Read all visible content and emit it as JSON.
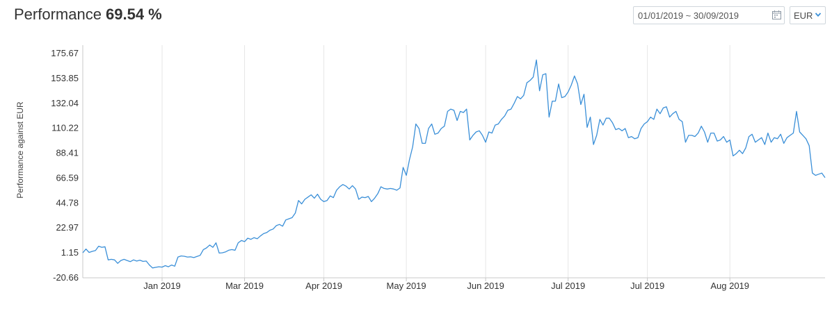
{
  "header": {
    "title": "Performance",
    "value": "69.54 %"
  },
  "date_range": {
    "value": "01/01/2019 ~ 30/09/2019",
    "icon": "calendar-icon"
  },
  "currency": {
    "selected": "EUR",
    "icon": "chevron-down-icon"
  },
  "colors": {
    "line": "#3a8fd8",
    "grid": "#e6e6e6",
    "axis": "#c8c8c8",
    "accent": "#3a8fd8"
  },
  "chart_data": {
    "type": "line",
    "title": "",
    "ylabel": "Performance against EUR",
    "xlabel": "",
    "ylim": [
      -20.66,
      175.67
    ],
    "yticks": [
      "-20.66",
      "1.15",
      "22.97",
      "44.78",
      "66.59",
      "88.41",
      "110.22",
      "132.04",
      "153.85",
      "175.67"
    ],
    "xlim": [
      0,
      228
    ],
    "xticks": [
      {
        "label": "Jan 2019",
        "x": 25
      },
      {
        "label": "Mar 2019",
        "x": 51
      },
      {
        "label": "Apr 2019",
        "x": 76
      },
      {
        "label": "May 2019",
        "x": 102
      },
      {
        "label": "Jun 2019",
        "x": 127
      },
      {
        "label": "Jul 2019",
        "x": 153
      },
      {
        "label": "Jul 2019",
        "x": 178
      },
      {
        "label": "Aug 2019",
        "x": 204
      }
    ],
    "grid_x": true,
    "grid_y": false,
    "series": [
      {
        "values": [
          [
            0,
            1.2
          ],
          [
            1,
            4.5
          ],
          [
            2,
            1.5
          ],
          [
            3,
            2.5
          ],
          [
            4,
            3.2
          ],
          [
            5,
            7.0
          ],
          [
            6,
            6.0
          ],
          [
            7,
            6.5
          ],
          [
            8,
            -5.0
          ],
          [
            9,
            -4.5
          ],
          [
            10,
            -5.0
          ],
          [
            11,
            -8.0
          ],
          [
            12,
            -5.5
          ],
          [
            13,
            -4.5
          ],
          [
            14,
            -5.5
          ],
          [
            15,
            -6.5
          ],
          [
            16,
            -5.0
          ],
          [
            17,
            -6.0
          ],
          [
            18,
            -5.2
          ],
          [
            19,
            -6.3
          ],
          [
            20,
            -6.0
          ],
          [
            21,
            -9.5
          ],
          [
            22,
            -12.0
          ],
          [
            23,
            -11.5
          ],
          [
            24,
            -11.0
          ],
          [
            25,
            -11.3
          ],
          [
            26,
            -10.0
          ],
          [
            27,
            -11.0
          ],
          [
            28,
            -9.5
          ],
          [
            29,
            -10.5
          ],
          [
            30,
            -2.5
          ],
          [
            31,
            -1.5
          ],
          [
            32,
            -1.8
          ],
          [
            33,
            -2.5
          ],
          [
            34,
            -2.3
          ],
          [
            35,
            -3.0
          ],
          [
            36,
            -2.0
          ],
          [
            37,
            -1.0
          ],
          [
            38,
            4.0
          ],
          [
            39,
            5.5
          ],
          [
            40,
            8.0
          ],
          [
            41,
            6.0
          ],
          [
            42,
            10.0
          ],
          [
            43,
            1.0
          ],
          [
            44,
            1.2
          ],
          [
            45,
            2.0
          ],
          [
            46,
            3.5
          ],
          [
            47,
            4.0
          ],
          [
            48,
            3.5
          ],
          [
            49,
            10.0
          ],
          [
            50,
            12.0
          ],
          [
            51,
            11.0
          ],
          [
            52,
            14.0
          ],
          [
            53,
            13.0
          ],
          [
            54,
            14.5
          ],
          [
            55,
            13.5
          ],
          [
            56,
            16.0
          ],
          [
            57,
            18.0
          ],
          [
            58,
            19.0
          ],
          [
            59,
            21.0
          ],
          [
            60,
            22.0
          ],
          [
            61,
            25.0
          ],
          [
            62,
            26.0
          ],
          [
            63,
            24.5
          ],
          [
            64,
            30.0
          ],
          [
            65,
            31.0
          ],
          [
            66,
            32.0
          ],
          [
            67,
            36.0
          ],
          [
            68,
            47.0
          ],
          [
            69,
            44.0
          ],
          [
            70,
            48.0
          ],
          [
            71,
            50.0
          ],
          [
            72,
            52.0
          ],
          [
            73,
            49.0
          ],
          [
            74,
            52.5
          ],
          [
            75,
            48.0
          ],
          [
            76,
            46.0
          ],
          [
            77,
            47.0
          ],
          [
            78,
            51.0
          ],
          [
            79,
            49.5
          ],
          [
            80,
            56.0
          ],
          [
            81,
            59.0
          ],
          [
            82,
            61.0
          ],
          [
            83,
            59.5
          ],
          [
            84,
            57.0
          ],
          [
            85,
            60.0
          ],
          [
            86,
            57.0
          ],
          [
            87,
            48.0
          ],
          [
            88,
            50.0
          ],
          [
            89,
            49.5
          ],
          [
            90,
            50.5
          ],
          [
            91,
            46.0
          ],
          [
            92,
            49.0
          ],
          [
            93,
            53.0
          ],
          [
            94,
            59.0
          ],
          [
            95,
            57.5
          ],
          [
            96,
            57.0
          ],
          [
            97,
            57.5
          ],
          [
            98,
            57.0
          ],
          [
            99,
            56.0
          ],
          [
            100,
            58.0
          ],
          [
            101,
            76.0
          ],
          [
            102,
            69.0
          ],
          [
            103,
            83.0
          ],
          [
            104,
            94.0
          ],
          [
            105,
            114.0
          ],
          [
            106,
            110.0
          ],
          [
            107,
            97.0
          ],
          [
            108,
            97.0
          ],
          [
            109,
            110.0
          ],
          [
            110,
            114.0
          ],
          [
            111,
            105.0
          ],
          [
            112,
            106.0
          ],
          [
            113,
            110.0
          ],
          [
            114,
            112.0
          ],
          [
            115,
            125.0
          ],
          [
            116,
            127.0
          ],
          [
            117,
            126.0
          ],
          [
            118,
            117.0
          ],
          [
            119,
            125.0
          ],
          [
            120,
            124.0
          ],
          [
            121,
            127.0
          ],
          [
            122,
            100.0
          ],
          [
            123,
            104.0
          ],
          [
            124,
            107.0
          ],
          [
            125,
            108.0
          ],
          [
            126,
            104.0
          ],
          [
            127,
            98.0
          ],
          [
            128,
            107.0
          ],
          [
            129,
            106.0
          ],
          [
            130,
            113.0
          ],
          [
            131,
            114.0
          ],
          [
            132,
            118.0
          ],
          [
            133,
            121.0
          ],
          [
            134,
            126.0
          ],
          [
            135,
            127.0
          ],
          [
            136,
            132.0
          ],
          [
            137,
            138.0
          ],
          [
            138,
            136.0
          ],
          [
            139,
            139.0
          ],
          [
            140,
            150.0
          ],
          [
            141,
            152.0
          ],
          [
            142,
            155.0
          ],
          [
            143,
            170.0
          ],
          [
            144,
            143.0
          ],
          [
            145,
            157.0
          ],
          [
            146,
            158.0
          ],
          [
            147,
            120.0
          ],
          [
            148,
            134.0
          ],
          [
            149,
            134.0
          ],
          [
            150,
            149.0
          ],
          [
            151,
            137.0
          ],
          [
            152,
            138.0
          ],
          [
            153,
            142.0
          ],
          [
            154,
            148.0
          ],
          [
            155,
            156.0
          ],
          [
            156,
            149.0
          ],
          [
            157,
            131.0
          ],
          [
            158,
            140.0
          ],
          [
            159,
            111.0
          ],
          [
            160,
            120.0
          ],
          [
            161,
            96.0
          ],
          [
            162,
            104.0
          ],
          [
            163,
            118.0
          ],
          [
            164,
            113.0
          ],
          [
            165,
            119.0
          ],
          [
            166,
            119.0
          ],
          [
            167,
            115.0
          ],
          [
            168,
            109.0
          ],
          [
            169,
            110.0
          ],
          [
            170,
            108.0
          ],
          [
            171,
            110.0
          ],
          [
            172,
            102.0
          ],
          [
            173,
            103.0
          ],
          [
            174,
            101.0
          ],
          [
            175,
            102.0
          ],
          [
            176,
            110.0
          ],
          [
            177,
            114.0
          ],
          [
            178,
            116.0
          ],
          [
            179,
            120.0
          ],
          [
            180,
            118.0
          ],
          [
            181,
            127.0
          ],
          [
            182,
            123.0
          ],
          [
            183,
            128.0
          ],
          [
            184,
            129.0
          ],
          [
            185,
            120.0
          ],
          [
            186,
            123.0
          ],
          [
            187,
            125.0
          ],
          [
            188,
            118.0
          ],
          [
            189,
            116.0
          ],
          [
            190,
            98.0
          ],
          [
            191,
            104.0
          ],
          [
            192,
            104.0
          ],
          [
            193,
            103.0
          ],
          [
            194,
            106.0
          ],
          [
            195,
            112.0
          ],
          [
            196,
            107.0
          ],
          [
            197,
            98.0
          ],
          [
            198,
            106.0
          ],
          [
            199,
            106.0
          ],
          [
            200,
            99.0
          ],
          [
            201,
            100.0
          ],
          [
            202,
            103.0
          ],
          [
            203,
            98.0
          ],
          [
            204,
            100.0
          ],
          [
            205,
            86.0
          ],
          [
            206,
            88.0
          ],
          [
            207,
            91.0
          ],
          [
            208,
            88.0
          ],
          [
            209,
            93.0
          ],
          [
            210,
            103.0
          ],
          [
            211,
            105.0
          ],
          [
            212,
            98.0
          ],
          [
            213,
            100.0
          ],
          [
            214,
            102.0
          ],
          [
            215,
            96.0
          ],
          [
            216,
            106.0
          ],
          [
            217,
            98.0
          ],
          [
            218,
            102.0
          ],
          [
            219,
            101.0
          ],
          [
            220,
            105.0
          ],
          [
            221,
            97.0
          ],
          [
            222,
            102.0
          ],
          [
            223,
            104.0
          ],
          [
            224,
            106.0
          ],
          [
            225,
            125.0
          ],
          [
            226,
            107.0
          ],
          [
            227,
            104.0
          ],
          [
            228,
            101.0
          ],
          [
            229,
            95.0
          ],
          [
            230,
            71.0
          ],
          [
            231,
            69.0
          ],
          [
            232,
            70.0
          ],
          [
            233,
            71.0
          ],
          [
            234,
            67.0
          ]
        ]
      }
    ]
  }
}
